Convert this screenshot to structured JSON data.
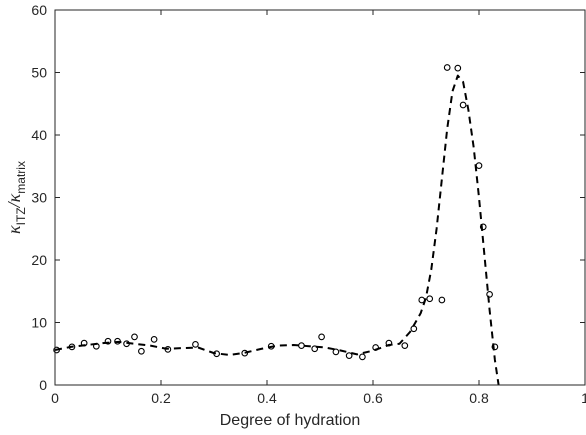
{
  "chart_data": {
    "type": "scatter",
    "title": "",
    "xlabel": "Degree of hydration",
    "ylabel": {
      "prefix": "κ",
      "sub1": "ITZ",
      "mid": "/κ",
      "sub2": "matrix"
    },
    "xlim": [
      0,
      1
    ],
    "ylim": [
      0,
      60
    ],
    "xticks": [
      "0",
      "0.2",
      "0.4",
      "0.6",
      "0.8",
      "1"
    ],
    "yticks": [
      "0",
      "10",
      "20",
      "30",
      "40",
      "50",
      "60"
    ],
    "grid": false,
    "legend": "none",
    "series": [
      {
        "style": "markers",
        "marker": "open-circle",
        "color": "#000000",
        "x": [
          0.003,
          0.032,
          0.055,
          0.078,
          0.1,
          0.118,
          0.135,
          0.15,
          0.163,
          0.187,
          0.213,
          0.265,
          0.305,
          0.358,
          0.408,
          0.465,
          0.49,
          0.503,
          0.53,
          0.555,
          0.58,
          0.605,
          0.63,
          0.66,
          0.677,
          0.692,
          0.707,
          0.73,
          0.74,
          0.76,
          0.77,
          0.8,
          0.808,
          0.82,
          0.83
        ],
        "y": [
          5.6,
          6.1,
          6.7,
          6.2,
          7.0,
          7.0,
          6.6,
          7.7,
          5.4,
          7.3,
          5.7,
          6.5,
          5.0,
          5.1,
          6.2,
          6.3,
          5.8,
          7.7,
          5.3,
          4.7,
          4.5,
          6.0,
          6.7,
          6.3,
          9.0,
          13.6,
          13.8,
          13.6,
          50.8,
          50.7,
          44.8,
          35.1,
          25.3,
          14.5,
          6.1
        ]
      },
      {
        "style": "dashed-line",
        "color": "#000000",
        "x": [
          0.0,
          0.03,
          0.06,
          0.09,
          0.12,
          0.15,
          0.18,
          0.21,
          0.24,
          0.27,
          0.3,
          0.33,
          0.36,
          0.39,
          0.42,
          0.45,
          0.48,
          0.51,
          0.54,
          0.57,
          0.6,
          0.63,
          0.65,
          0.67,
          0.69,
          0.7,
          0.71,
          0.72,
          0.73,
          0.74,
          0.75,
          0.76,
          0.77,
          0.78,
          0.79,
          0.8,
          0.81,
          0.82,
          0.83,
          0.837
        ],
        "y": [
          5.6,
          6.1,
          6.4,
          6.7,
          6.9,
          6.6,
          6.3,
          5.8,
          5.9,
          6.0,
          5.1,
          4.8,
          5.2,
          5.8,
          6.3,
          6.4,
          6.2,
          6.0,
          5.5,
          4.9,
          5.5,
          6.4,
          6.6,
          8.5,
          11.5,
          14.0,
          18.5,
          25.0,
          33.0,
          41.0,
          47.0,
          49.5,
          48.5,
          44.0,
          38.0,
          30.0,
          21.0,
          12.0,
          4.0,
          0.0
        ]
      }
    ]
  }
}
